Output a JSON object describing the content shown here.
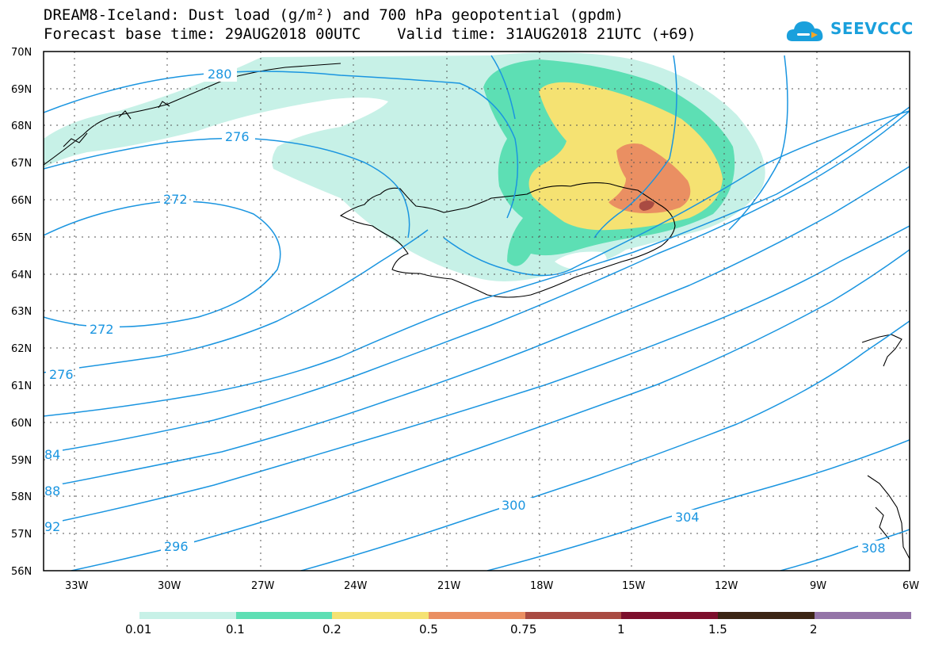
{
  "header": {
    "title_line1": "DREAM8-Iceland: Dust load (g/m²) and 700 hPa geopotential (gpdm)",
    "title_line2": "Forecast base time: 29AUG2018 00UTC    Valid time: 31AUG2018 21UTC (+69)",
    "logo_text": "SEEVCCC",
    "logo_icon": "cloud-icon"
  },
  "map": {
    "lon_range": [
      -34.5,
      -6
    ],
    "lat_range": [
      56,
      70
    ],
    "lon_ticks": [
      "33W",
      "30W",
      "27W",
      "24W",
      "21W",
      "18W",
      "15W",
      "12W",
      "9W",
      "6W"
    ],
    "lat_ticks": [
      "70N",
      "69N",
      "68N",
      "67N",
      "66N",
      "65N",
      "64N",
      "63N",
      "62N",
      "61N",
      "60N",
      "59N",
      "58N",
      "57N",
      "56N"
    ],
    "grid": "dotted",
    "contour_color": "#1a95e0",
    "contour_labels": [
      "280",
      "276",
      "272",
      "272",
      "276",
      "84",
      "88",
      "92",
      "296",
      "300",
      "304",
      "308"
    ]
  },
  "colorbar": {
    "labels": [
      "0.01",
      "0.1",
      "0.2",
      "0.5",
      "0.75",
      "1",
      "1.5",
      "2"
    ],
    "colors": [
      "#c7f1e7",
      "#5ddfb4",
      "#f5e272",
      "#ea8f62",
      "#a94b42",
      "#7c0f2c",
      "#3b2414",
      "#9474a8"
    ]
  }
}
